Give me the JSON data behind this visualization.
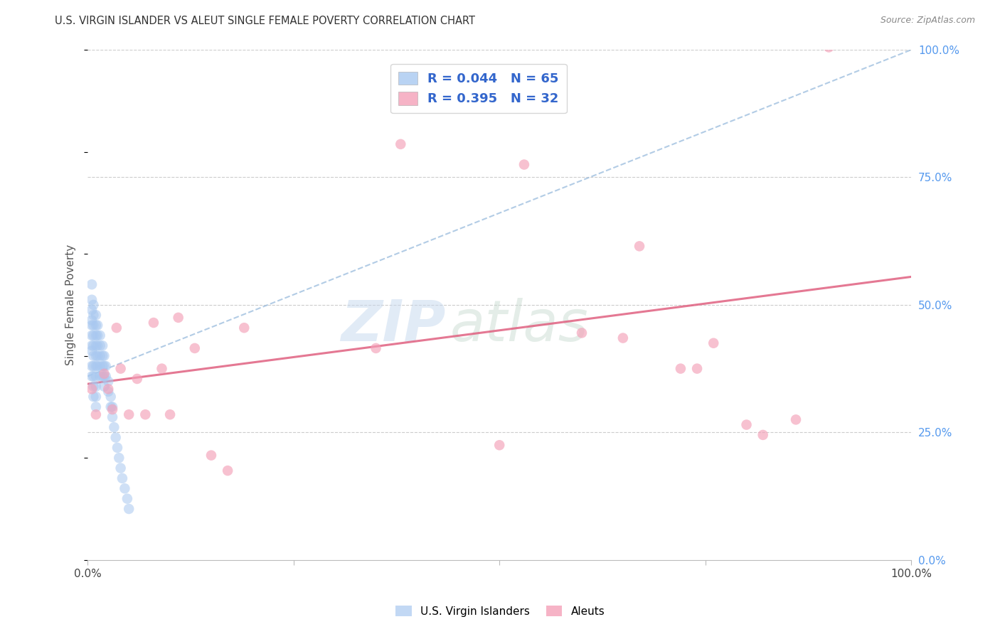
{
  "title": "U.S. VIRGIN ISLANDER VS ALEUT SINGLE FEMALE POVERTY CORRELATION CHART",
  "source": "Source: ZipAtlas.com",
  "ylabel": "Single Female Poverty",
  "xlim": [
    0,
    1.0
  ],
  "ylim": [
    0,
    1.0
  ],
  "legend_r1": "0.044",
  "legend_n1": "65",
  "legend_r2": "0.395",
  "legend_n2": "32",
  "color_blue": "#a8c8f0",
  "color_pink": "#f4a0b8",
  "trendline_blue_color": "#99bbdd",
  "trendline_pink_color": "#e06080",
  "background_color": "#ffffff",
  "grid_color": "#cccccc",
  "blue_points_x": [
    0.005,
    0.005,
    0.005,
    0.005,
    0.005,
    0.005,
    0.005,
    0.005,
    0.005,
    0.005,
    0.007,
    0.007,
    0.007,
    0.007,
    0.007,
    0.007,
    0.007,
    0.007,
    0.007,
    0.007,
    0.01,
    0.01,
    0.01,
    0.01,
    0.01,
    0.01,
    0.01,
    0.01,
    0.01,
    0.01,
    0.012,
    0.012,
    0.012,
    0.012,
    0.012,
    0.015,
    0.015,
    0.015,
    0.015,
    0.015,
    0.018,
    0.018,
    0.018,
    0.018,
    0.02,
    0.02,
    0.02,
    0.02,
    0.022,
    0.022,
    0.025,
    0.025,
    0.028,
    0.028,
    0.03,
    0.03,
    0.032,
    0.034,
    0.036,
    0.038,
    0.04,
    0.042,
    0.045,
    0.048,
    0.05
  ],
  "blue_points_y": [
    0.54,
    0.51,
    0.49,
    0.47,
    0.46,
    0.44,
    0.42,
    0.41,
    0.38,
    0.36,
    0.5,
    0.48,
    0.46,
    0.44,
    0.42,
    0.4,
    0.38,
    0.36,
    0.34,
    0.32,
    0.48,
    0.46,
    0.44,
    0.42,
    0.4,
    0.38,
    0.36,
    0.34,
    0.32,
    0.3,
    0.46,
    0.44,
    0.42,
    0.4,
    0.38,
    0.44,
    0.42,
    0.4,
    0.38,
    0.36,
    0.42,
    0.4,
    0.38,
    0.36,
    0.4,
    0.38,
    0.36,
    0.34,
    0.38,
    0.36,
    0.35,
    0.33,
    0.32,
    0.3,
    0.3,
    0.28,
    0.26,
    0.24,
    0.22,
    0.2,
    0.18,
    0.16,
    0.14,
    0.12,
    0.1
  ],
  "pink_points_x": [
    0.005,
    0.01,
    0.02,
    0.025,
    0.03,
    0.035,
    0.04,
    0.05,
    0.06,
    0.07,
    0.08,
    0.09,
    0.1,
    0.11,
    0.13,
    0.15,
    0.17,
    0.19,
    0.35,
    0.38,
    0.5,
    0.53,
    0.6,
    0.65,
    0.67,
    0.72,
    0.74,
    0.76,
    0.8,
    0.82,
    0.86,
    0.9
  ],
  "pink_points_y": [
    0.335,
    0.285,
    0.365,
    0.335,
    0.295,
    0.455,
    0.375,
    0.285,
    0.355,
    0.285,
    0.465,
    0.375,
    0.285,
    0.475,
    0.415,
    0.205,
    0.175,
    0.455,
    0.415,
    0.815,
    0.225,
    0.775,
    0.445,
    0.435,
    0.615,
    0.375,
    0.375,
    0.425,
    0.265,
    0.245,
    0.275,
    1.005
  ],
  "blue_trend_start_y": 0.36,
  "blue_trend_end_y": 1.0,
  "pink_trend_start_y": 0.345,
  "pink_trend_end_y": 0.555,
  "watermark_zip": "ZIP",
  "watermark_atlas": "atlas",
  "marker_size": 110,
  "title_fontsize": 10.5,
  "source_fontsize": 9,
  "label_fontsize": 11,
  "legend_fontsize": 13
}
